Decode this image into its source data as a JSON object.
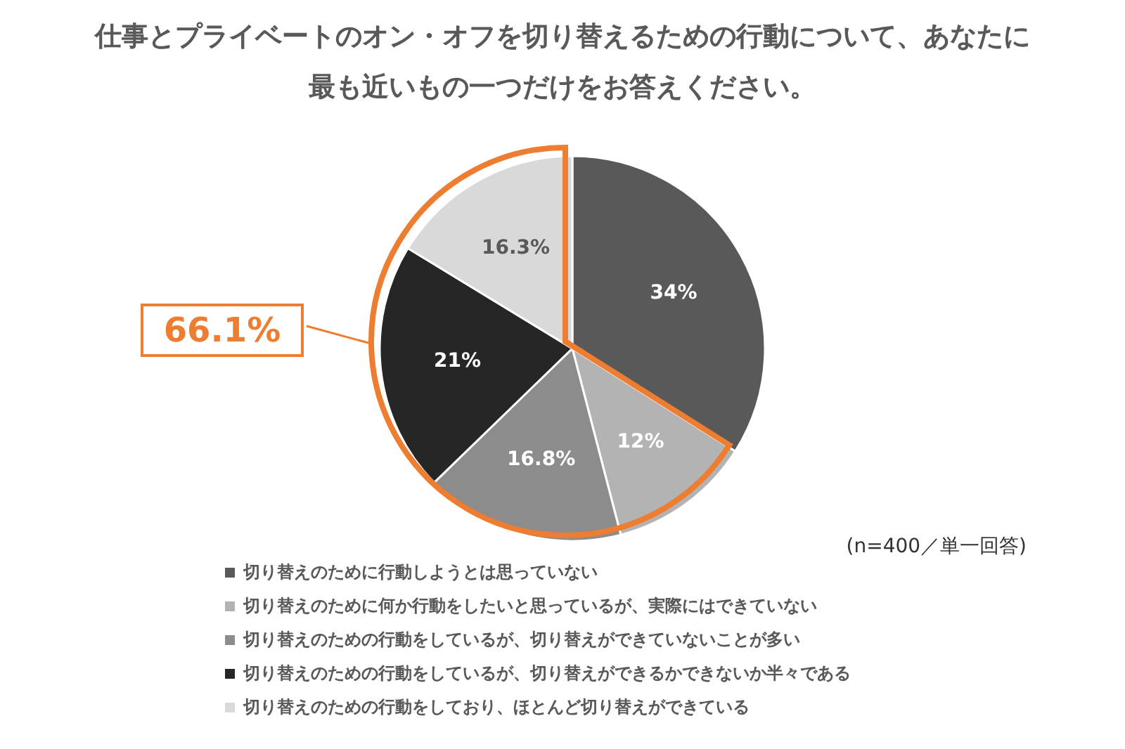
{
  "chart_data": {
    "type": "pie",
    "title": "仕事とプライベートのオン・オフを切り替えるための行動について、あなたに最も近いもの一つだけをお答えください。",
    "categories": [
      "切り替えのために行動しようとは思っていない",
      "切り替えのために何か行動をしたいと思っているが、実際にはできていない",
      "切り替えのための行動をしているが、切り替えができていないことが多い",
      "切り替えのための行動をしているが、切り替えができるかできないか半々である",
      "切り替えのための行動をしており、ほとんど切り替えができている"
    ],
    "values": [
      34,
      12,
      16.8,
      21,
      16.3
    ],
    "colors": [
      "#595959",
      "#b3b3b3",
      "#8c8c8c",
      "#262626",
      "#d9d9d9"
    ],
    "value_labels": [
      "34%",
      "12%",
      "16.8%",
      "21%",
      "16.3%"
    ],
    "legend": "bottom",
    "annotations": [
      "66.1%",
      "(n=400／単一回答)"
    ]
  }
}
